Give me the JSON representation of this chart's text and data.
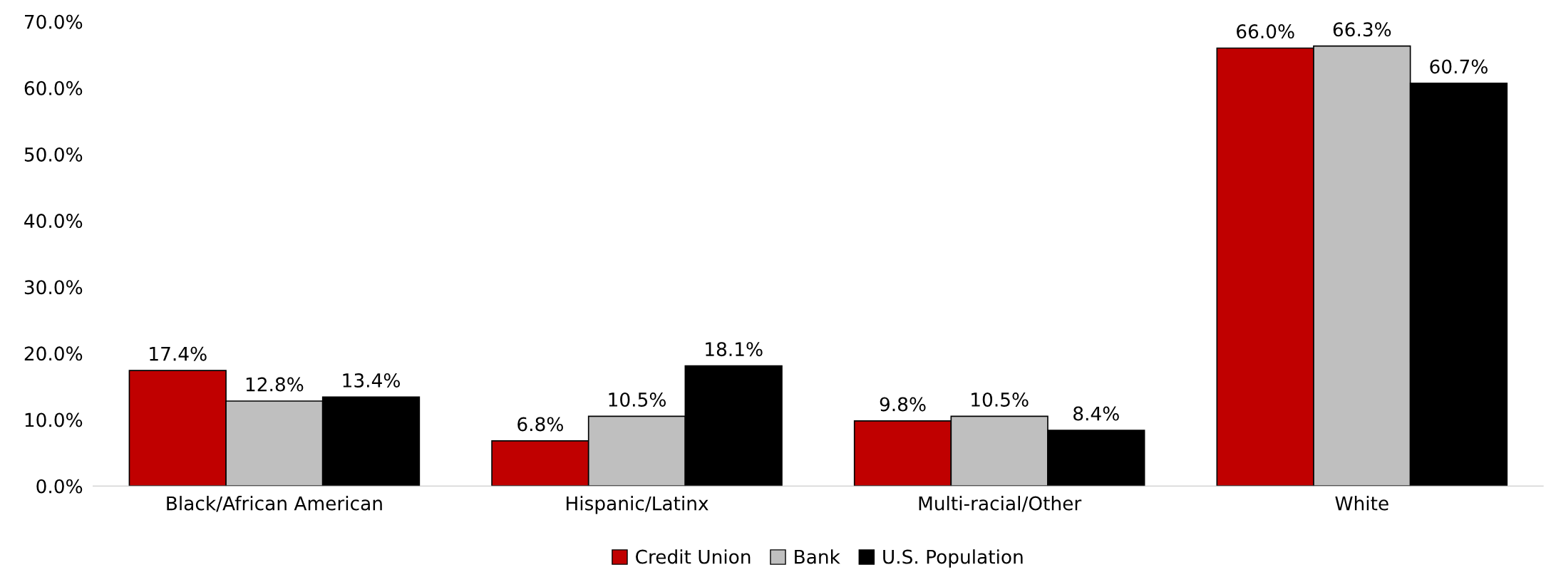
{
  "chart_data": {
    "type": "bar",
    "categories": [
      "Black/African American",
      "Hispanic/Latinx",
      "Multi-racial/Other",
      "White"
    ],
    "series": [
      {
        "name": "Credit Union",
        "color": "#c00000",
        "values": [
          17.4,
          6.8,
          9.8,
          66.0
        ],
        "value_labels": [
          "17.4%",
          "6.8%",
          "9.8%",
          "66.0%"
        ]
      },
      {
        "name": "Bank",
        "color": "#bfbfbf",
        "values": [
          12.8,
          10.5,
          10.5,
          66.3
        ],
        "value_labels": [
          "12.8%",
          "10.5%",
          "10.5%",
          "66.3%"
        ]
      },
      {
        "name": "U.S. Population",
        "color": "#000000",
        "values": [
          13.4,
          18.1,
          8.4,
          60.7
        ],
        "value_labels": [
          "13.4%",
          "18.1%",
          "8.4%",
          "60.7%"
        ]
      }
    ],
    "ylim": [
      0,
      70
    ],
    "yticks": [
      {
        "value": 0,
        "label": "0.0%"
      },
      {
        "value": 10,
        "label": "10.0%"
      },
      {
        "value": 20,
        "label": "20.0%"
      },
      {
        "value": 30,
        "label": "30.0%"
      },
      {
        "value": 40,
        "label": "40.0%"
      },
      {
        "value": 50,
        "label": "50.0%"
      },
      {
        "value": 60,
        "label": "60.0%"
      },
      {
        "value": 70,
        "label": "70.0%"
      }
    ],
    "grid": false,
    "legend": "bottom"
  }
}
